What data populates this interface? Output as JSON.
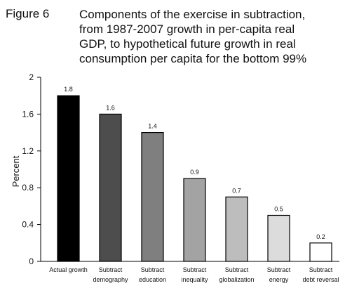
{
  "figure_label": "Figure 6",
  "title_lines": [
    "Components of the exercise in subtraction,",
    "from 1987-2007 growth in per-capita real",
    "GDP, to hypothetical future growth in real",
    "consumption per capita for the bottom 99%"
  ],
  "chart_data": {
    "type": "bar",
    "title": "Components of the exercise in subtraction, from 1987-2007 growth in per-capita real GDP, to hypothetical future growth in real consumption per capita for the bottom 99%",
    "categories": [
      [
        "Actual growth"
      ],
      [
        "Subtract",
        "demography"
      ],
      [
        "Subtract",
        "education"
      ],
      [
        "Subtract",
        "inequality"
      ],
      [
        "Subtract",
        "globalization"
      ],
      [
        "Subtract",
        "energy"
      ],
      [
        "Subtract",
        "debt reversal"
      ]
    ],
    "values": [
      1.8,
      1.6,
      1.4,
      0.9,
      0.7,
      0.5,
      0.2
    ],
    "data_labels": [
      "1.8",
      "1.6",
      "1.4",
      "0.9",
      "0.7",
      "0.5",
      "0.2"
    ],
    "bar_colors": [
      "#000000",
      "#4d4d4d",
      "#7f7f7f",
      "#a3a3a3",
      "#bdbdbd",
      "#dcdcdc",
      "#ffffff"
    ],
    "xlabel": "",
    "ylabel": "Percent",
    "ylim": [
      0,
      2
    ],
    "yticks": [
      "0",
      "0.4",
      "0.8",
      "1.2",
      "1.6",
      "2"
    ],
    "grid": false,
    "legend": "none"
  }
}
